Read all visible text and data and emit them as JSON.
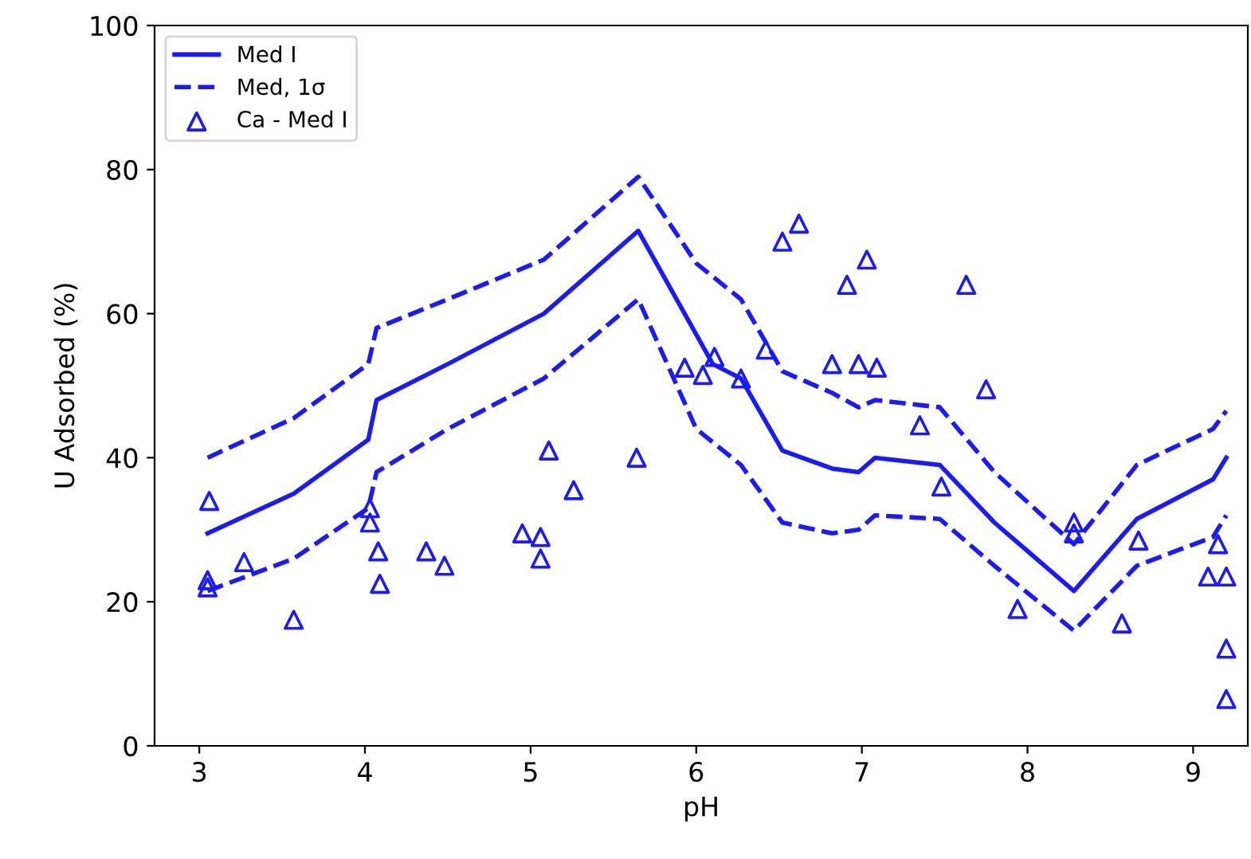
{
  "chart_data": {
    "type": "line",
    "xlabel": "pH",
    "ylabel": "U Adsorbed (%)",
    "xlim": [
      2.73,
      9.33
    ],
    "xticks": [
      3,
      4,
      5,
      6,
      7,
      8,
      9
    ],
    "ylim": [
      0,
      100
    ],
    "yticks": [
      0,
      20,
      40,
      60,
      80,
      100
    ],
    "grid": false,
    "legend": "top left",
    "series": [
      {
        "name": "Med I",
        "color": "#1a1aff",
        "line_style": "solid",
        "marker": "none",
        "x": [
          3.05,
          3.57,
          4.02,
          4.07,
          4.5,
          5.08,
          5.65,
          6.1,
          6.27,
          6.52,
          6.82,
          6.98,
          7.08,
          7.47,
          7.8,
          8.28,
          8.66,
          9.12,
          9.2
        ],
        "values": [
          29.5,
          35,
          42.5,
          48,
          53,
          60,
          71.5,
          53,
          51,
          41,
          38.5,
          38,
          40,
          39,
          31,
          21.5,
          31.5,
          37,
          40
        ]
      },
      {
        "name": "Med, 1σ",
        "color": "#1a1aff",
        "line_style": "dashed",
        "marker": "none",
        "x": [
          3.05,
          3.57,
          4.02,
          4.07,
          4.5,
          5.08,
          5.65,
          6.0,
          6.27,
          6.52,
          6.82,
          6.98,
          7.08,
          7.47,
          7.8,
          8.28,
          8.66,
          9.12,
          9.2
        ],
        "values": [
          40,
          45.5,
          53,
          58,
          62,
          67.5,
          79,
          67,
          62,
          52,
          49,
          47,
          48,
          47,
          38,
          28,
          39,
          44,
          46.5
        ]
      },
      {
        "color": "#1a1aff",
        "line_style": "dashed",
        "marker": "none",
        "x": [
          3.05,
          3.57,
          4.02,
          4.07,
          4.5,
          5.08,
          5.65,
          6.0,
          6.27,
          6.52,
          6.82,
          6.98,
          7.08,
          7.47,
          7.8,
          8.28,
          8.66,
          9.12,
          9.2
        ],
        "values": [
          21.5,
          26,
          33,
          38,
          44,
          51,
          62,
          44,
          39,
          31,
          29.5,
          30,
          32,
          31.5,
          25,
          16,
          25,
          29,
          32
        ]
      },
      {
        "name": "Ca - Med I",
        "type": "scatter",
        "color": "#1a1aff",
        "marker": "triangle",
        "x": [
          3.06,
          3.05,
          3.05,
          3.27,
          3.57,
          4.03,
          4.03,
          4.08,
          4.09,
          4.37,
          4.48,
          4.95,
          5.06,
          5.06,
          5.11,
          5.26,
          5.64,
          5.93,
          6.04,
          6.11,
          6.27,
          6.42,
          6.52,
          6.62,
          6.82,
          6.91,
          6.98,
          7.03,
          7.09,
          7.35,
          7.48,
          7.63,
          7.75,
          7.94,
          8.28,
          8.28,
          8.57,
          8.67,
          9.09,
          9.15,
          9.2,
          9.2,
          9.2
        ],
        "values": [
          34,
          23,
          22,
          25.5,
          17.5,
          33,
          31,
          27,
          22.5,
          27,
          25,
          29.5,
          29,
          26,
          41,
          35.5,
          40,
          52.5,
          51.5,
          54,
          51,
          55,
          70,
          72.5,
          53,
          64,
          53,
          67.5,
          52.5,
          44.5,
          36,
          64,
          49.5,
          19,
          31,
          29.5,
          17,
          28.5,
          23.5,
          28,
          23.5,
          13.5,
          6.5
        ]
      }
    ]
  }
}
